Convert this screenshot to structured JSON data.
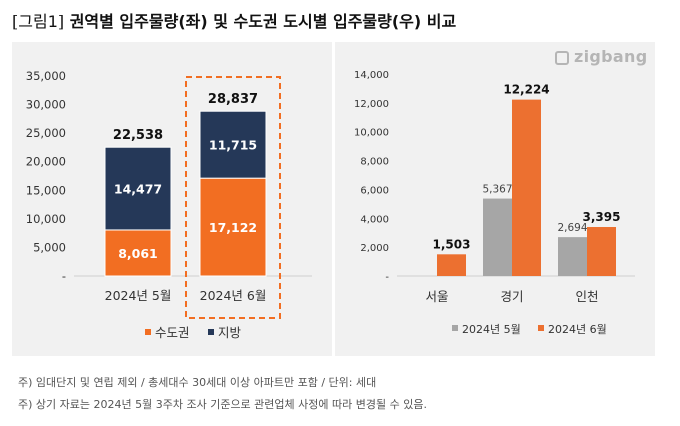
{
  "title": {
    "bracket_open": "[",
    "label": "그림1",
    "bracket_close": "]",
    "text": "권역별 입주물량(좌) 및 수도권 도시별 입주물량(우) 비교"
  },
  "brand": {
    "name": "zigbang",
    "icon": "zigbang-logo-icon"
  },
  "colors": {
    "capital": "#f26e22",
    "regional": "#253858",
    "may": "#a6a6a6",
    "june": "#ec7030",
    "highlight_border": "#f26e22"
  },
  "chart_data": [
    {
      "type": "bar",
      "stacked": true,
      "categories": [
        "2024년 5월",
        "2024년 6월"
      ],
      "series": [
        {
          "name": "수도권",
          "values": [
            8061,
            17122
          ],
          "labels": [
            "8,061",
            "17,122"
          ]
        },
        {
          "name": "지방",
          "values": [
            14477,
            11715
          ],
          "labels": [
            "14,477",
            "11,715"
          ]
        }
      ],
      "totals": [
        22538,
        28837
      ],
      "total_labels": [
        "22,538",
        "28,837"
      ],
      "ylim": [
        0,
        35000
      ],
      "yticks": [
        "-",
        "5,000",
        "10,000",
        "15,000",
        "20,000",
        "25,000",
        "30,000",
        "35,000"
      ],
      "grid": false,
      "highlight_category": "2024년 6월",
      "legend_position": "bottom"
    },
    {
      "type": "bar",
      "categories": [
        "서울",
        "경기",
        "인천"
      ],
      "series": [
        {
          "name": "2024년 5월",
          "values": [
            0,
            5367,
            2694
          ],
          "labels": [
            "",
            "5,367",
            "2,694"
          ]
        },
        {
          "name": "2024년 6월",
          "values": [
            1503,
            12224,
            3395
          ],
          "labels": [
            "1,503",
            "12,224",
            "3,395"
          ]
        }
      ],
      "ylim": [
        0,
        14000
      ],
      "yticks": [
        "-",
        "2,000",
        "4,000",
        "6,000",
        "8,000",
        "10,000",
        "12,000",
        "14,000"
      ],
      "grid": false,
      "legend_position": "bottom"
    }
  ],
  "footnotes": [
    "주) 임대단지 및 연립 제외 / 총세대수 30세대 이상 아파트만 포함 / 단위: 세대",
    "주) 상기 자료는 2024년 5월 3주차 조사 기준으로 관련업체 사정에 따라 변경될 수 있음."
  ]
}
